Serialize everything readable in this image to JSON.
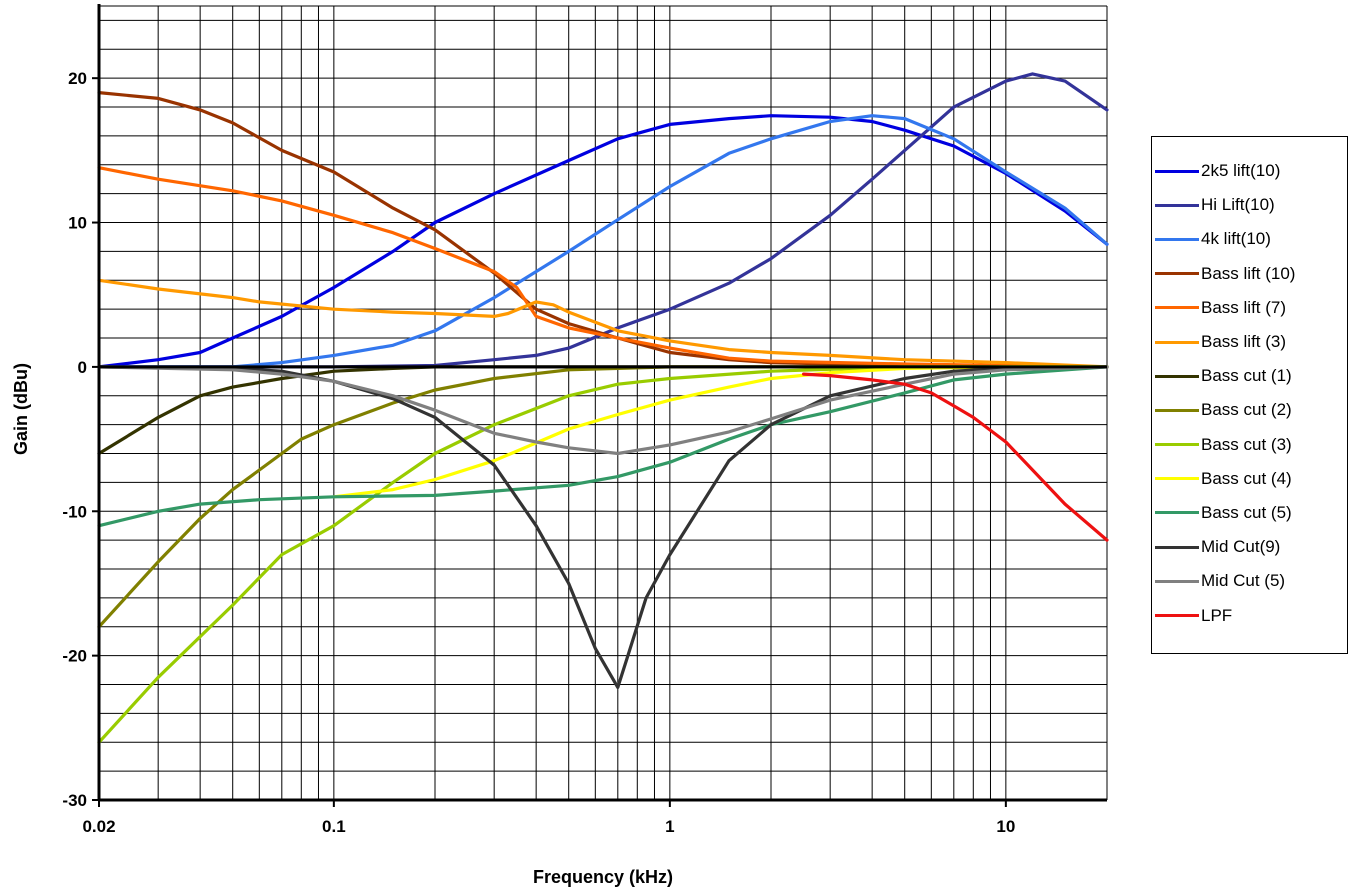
{
  "chart_data": {
    "type": "line",
    "xlabel": "Frequency (kHz)",
    "ylabel": "Gain (dBu)",
    "xscale": "log",
    "xlim": [
      0.02,
      20
    ],
    "ylim": [
      -30,
      25
    ],
    "x_ticks": [
      0.02,
      0.1,
      1,
      10
    ],
    "x_tick_labels": [
      "0.02",
      "0.1",
      "1",
      "10"
    ],
    "y_ticks": [
      -30,
      -20,
      -10,
      0,
      10,
      20
    ],
    "y_tick_labels": [
      "-30",
      "-20",
      "-10",
      "0",
      "10",
      "20"
    ],
    "grid": true,
    "legend_position": "right",
    "series": [
      {
        "name": "2k5 lift(10)",
        "color": "#0000e0",
        "points": [
          [
            0.02,
            0
          ],
          [
            0.03,
            0.5
          ],
          [
            0.04,
            1
          ],
          [
            0.05,
            2
          ],
          [
            0.07,
            3.5
          ],
          [
            0.1,
            5.5
          ],
          [
            0.15,
            8
          ],
          [
            0.2,
            10
          ],
          [
            0.3,
            12
          ],
          [
            0.5,
            14.3
          ],
          [
            0.7,
            15.8
          ],
          [
            1,
            16.8
          ],
          [
            1.5,
            17.2
          ],
          [
            2,
            17.4
          ],
          [
            3,
            17.3
          ],
          [
            4,
            17
          ],
          [
            5,
            16.4
          ],
          [
            7,
            15.3
          ],
          [
            10,
            13.4
          ],
          [
            15,
            10.8
          ],
          [
            20,
            8.5
          ]
        ]
      },
      {
        "name": "Hi Lift(10)",
        "color": "#333399",
        "points": [
          [
            0.02,
            0
          ],
          [
            0.1,
            0
          ],
          [
            0.2,
            0.1
          ],
          [
            0.3,
            0.5
          ],
          [
            0.4,
            0.8
          ],
          [
            0.5,
            1.3
          ],
          [
            0.7,
            2.7
          ],
          [
            1,
            4
          ],
          [
            1.5,
            5.8
          ],
          [
            2,
            7.5
          ],
          [
            3,
            10.5
          ],
          [
            4,
            13
          ],
          [
            5,
            15
          ],
          [
            7,
            18
          ],
          [
            10,
            19.8
          ],
          [
            12,
            20.3
          ],
          [
            15,
            19.8
          ],
          [
            20,
            17.8
          ]
        ]
      },
      {
        "name": "4k lift(10)",
        "color": "#3377ee",
        "points": [
          [
            0.02,
            0
          ],
          [
            0.05,
            0
          ],
          [
            0.07,
            0.3
          ],
          [
            0.1,
            0.8
          ],
          [
            0.15,
            1.5
          ],
          [
            0.2,
            2.5
          ],
          [
            0.3,
            4.8
          ],
          [
            0.5,
            8
          ],
          [
            0.7,
            10.2
          ],
          [
            1,
            12.5
          ],
          [
            1.5,
            14.8
          ],
          [
            2,
            15.8
          ],
          [
            3,
            17
          ],
          [
            4,
            17.4
          ],
          [
            5,
            17.2
          ],
          [
            7,
            15.8
          ],
          [
            10,
            13.5
          ],
          [
            15,
            11
          ],
          [
            20,
            8.5
          ]
        ]
      },
      {
        "name": "Bass lift (10)",
        "color": "#993300",
        "points": [
          [
            0.02,
            19
          ],
          [
            0.03,
            18.6
          ],
          [
            0.04,
            17.8
          ],
          [
            0.05,
            16.9
          ],
          [
            0.07,
            15
          ],
          [
            0.1,
            13.5
          ],
          [
            0.15,
            11
          ],
          [
            0.2,
            9.5
          ],
          [
            0.3,
            6.5
          ],
          [
            0.4,
            4
          ],
          [
            0.5,
            3
          ],
          [
            0.7,
            2
          ],
          [
            1,
            1
          ],
          [
            1.5,
            0.5
          ],
          [
            2,
            0.3
          ],
          [
            5,
            0.1
          ],
          [
            10,
            0
          ],
          [
            20,
            0
          ]
        ]
      },
      {
        "name": "Bass lift (7)",
        "color": "#ff6600",
        "points": [
          [
            0.02,
            13.8
          ],
          [
            0.03,
            13
          ],
          [
            0.05,
            12.2
          ],
          [
            0.07,
            11.5
          ],
          [
            0.1,
            10.5
          ],
          [
            0.15,
            9.3
          ],
          [
            0.2,
            8.2
          ],
          [
            0.3,
            6.6
          ],
          [
            0.35,
            5.5
          ],
          [
            0.4,
            3.5
          ],
          [
            0.5,
            2.7
          ],
          [
            0.7,
            2
          ],
          [
            1,
            1.3
          ],
          [
            1.5,
            0.6
          ],
          [
            2,
            0.4
          ],
          [
            5,
            0.2
          ],
          [
            10,
            0.1
          ],
          [
            20,
            0
          ]
        ]
      },
      {
        "name": "Bass lift (3)",
        "color": "#ff9900",
        "points": [
          [
            0.02,
            6
          ],
          [
            0.03,
            5.4
          ],
          [
            0.05,
            4.8
          ],
          [
            0.06,
            4.5
          ],
          [
            0.1,
            4
          ],
          [
            0.15,
            3.8
          ],
          [
            0.2,
            3.7
          ],
          [
            0.3,
            3.5
          ],
          [
            0.33,
            3.7
          ],
          [
            0.4,
            4.5
          ],
          [
            0.45,
            4.3
          ],
          [
            0.5,
            3.8
          ],
          [
            0.7,
            2.5
          ],
          [
            1,
            1.8
          ],
          [
            1.5,
            1.2
          ],
          [
            2,
            1
          ],
          [
            3,
            0.8
          ],
          [
            5,
            0.5
          ],
          [
            10,
            0.3
          ],
          [
            20,
            0
          ]
        ]
      },
      {
        "name": "Bass cut (1)",
        "color": "#333300",
        "points": [
          [
            0.02,
            -6
          ],
          [
            0.03,
            -3.5
          ],
          [
            0.04,
            -2
          ],
          [
            0.05,
            -1.4
          ],
          [
            0.07,
            -0.8
          ],
          [
            0.1,
            -0.3
          ],
          [
            0.15,
            -0.1
          ],
          [
            0.2,
            0
          ],
          [
            0.5,
            0
          ],
          [
            1,
            0
          ],
          [
            20,
            0
          ]
        ]
      },
      {
        "name": "Bass cut (2)",
        "color": "#808000",
        "points": [
          [
            0.02,
            -18
          ],
          [
            0.03,
            -13.5
          ],
          [
            0.04,
            -10.5
          ],
          [
            0.05,
            -8.5
          ],
          [
            0.07,
            -6
          ],
          [
            0.08,
            -5
          ],
          [
            0.1,
            -4
          ],
          [
            0.15,
            -2.5
          ],
          [
            0.2,
            -1.6
          ],
          [
            0.3,
            -0.8
          ],
          [
            0.5,
            -0.2
          ],
          [
            1,
            0
          ],
          [
            20,
            0
          ]
        ]
      },
      {
        "name": "Bass cut (3)",
        "color": "#99cc00",
        "points": [
          [
            0.02,
            -26
          ],
          [
            0.03,
            -21.5
          ],
          [
            0.05,
            -16.5
          ],
          [
            0.07,
            -13
          ],
          [
            0.1,
            -11
          ],
          [
            0.15,
            -8
          ],
          [
            0.2,
            -6
          ],
          [
            0.3,
            -4
          ],
          [
            0.5,
            -2
          ],
          [
            0.7,
            -1.2
          ],
          [
            1,
            -0.8
          ],
          [
            2,
            -0.3
          ],
          [
            5,
            0
          ],
          [
            20,
            0
          ]
        ]
      },
      {
        "name": "Bass cut (4)",
        "color": "#ffff00",
        "points": [
          [
            0.1,
            -9
          ],
          [
            0.15,
            -8.5
          ],
          [
            0.2,
            -7.8
          ],
          [
            0.3,
            -6.5
          ],
          [
            0.5,
            -4.3
          ],
          [
            0.7,
            -3.3
          ],
          [
            1,
            -2.3
          ],
          [
            1.5,
            -1.4
          ],
          [
            2,
            -0.8
          ],
          [
            3,
            -0.4
          ],
          [
            5,
            -0.1
          ],
          [
            10,
            0
          ],
          [
            20,
            0
          ]
        ]
      },
      {
        "name": "Bass cut (5)",
        "color": "#339966",
        "points": [
          [
            0.02,
            -11
          ],
          [
            0.03,
            -10
          ],
          [
            0.04,
            -9.5
          ],
          [
            0.06,
            -9.2
          ],
          [
            0.1,
            -9
          ],
          [
            0.2,
            -8.9
          ],
          [
            0.3,
            -8.6
          ],
          [
            0.5,
            -8.2
          ],
          [
            0.7,
            -7.6
          ],
          [
            1,
            -6.6
          ],
          [
            1.5,
            -5
          ],
          [
            2,
            -4
          ],
          [
            3,
            -3.1
          ],
          [
            5,
            -1.8
          ],
          [
            7,
            -0.9
          ],
          [
            10,
            -0.5
          ],
          [
            20,
            0
          ]
        ]
      },
      {
        "name": "Mid Cut(9)",
        "color": "#333333",
        "points": [
          [
            0.02,
            0
          ],
          [
            0.05,
            -0.1
          ],
          [
            0.07,
            -0.3
          ],
          [
            0.1,
            -1
          ],
          [
            0.15,
            -2.2
          ],
          [
            0.2,
            -3.5
          ],
          [
            0.3,
            -6.8
          ],
          [
            0.4,
            -11
          ],
          [
            0.5,
            -15
          ],
          [
            0.6,
            -19.5
          ],
          [
            0.7,
            -22.2
          ],
          [
            0.75,
            -20
          ],
          [
            0.85,
            -16
          ],
          [
            1,
            -13
          ],
          [
            1.5,
            -6.5
          ],
          [
            2,
            -4
          ],
          [
            3,
            -2
          ],
          [
            5,
            -0.8
          ],
          [
            7,
            -0.3
          ],
          [
            10,
            -0.1
          ],
          [
            20,
            0
          ]
        ]
      },
      {
        "name": "Mid Cut (5)",
        "color": "#808080",
        "points": [
          [
            0.02,
            0
          ],
          [
            0.05,
            -0.2
          ],
          [
            0.07,
            -0.5
          ],
          [
            0.1,
            -1
          ],
          [
            0.15,
            -2
          ],
          [
            0.2,
            -3
          ],
          [
            0.3,
            -4.6
          ],
          [
            0.4,
            -5.2
          ],
          [
            0.5,
            -5.6
          ],
          [
            0.7,
            -6
          ],
          [
            1,
            -5.4
          ],
          [
            1.5,
            -4.5
          ],
          [
            2,
            -3.6
          ],
          [
            3,
            -2.3
          ],
          [
            5,
            -1.2
          ],
          [
            7,
            -0.5
          ],
          [
            10,
            -0.2
          ],
          [
            20,
            0
          ]
        ]
      },
      {
        "name": "LPF",
        "color": "#ee1111",
        "points": [
          [
            2.5,
            -0.5
          ],
          [
            3,
            -0.6
          ],
          [
            4,
            -0.9
          ],
          [
            5,
            -1.2
          ],
          [
            6,
            -1.8
          ],
          [
            7,
            -2.7
          ],
          [
            8,
            -3.5
          ],
          [
            10,
            -5.2
          ],
          [
            15,
            -9.5
          ],
          [
            20,
            -12
          ]
        ]
      }
    ]
  }
}
